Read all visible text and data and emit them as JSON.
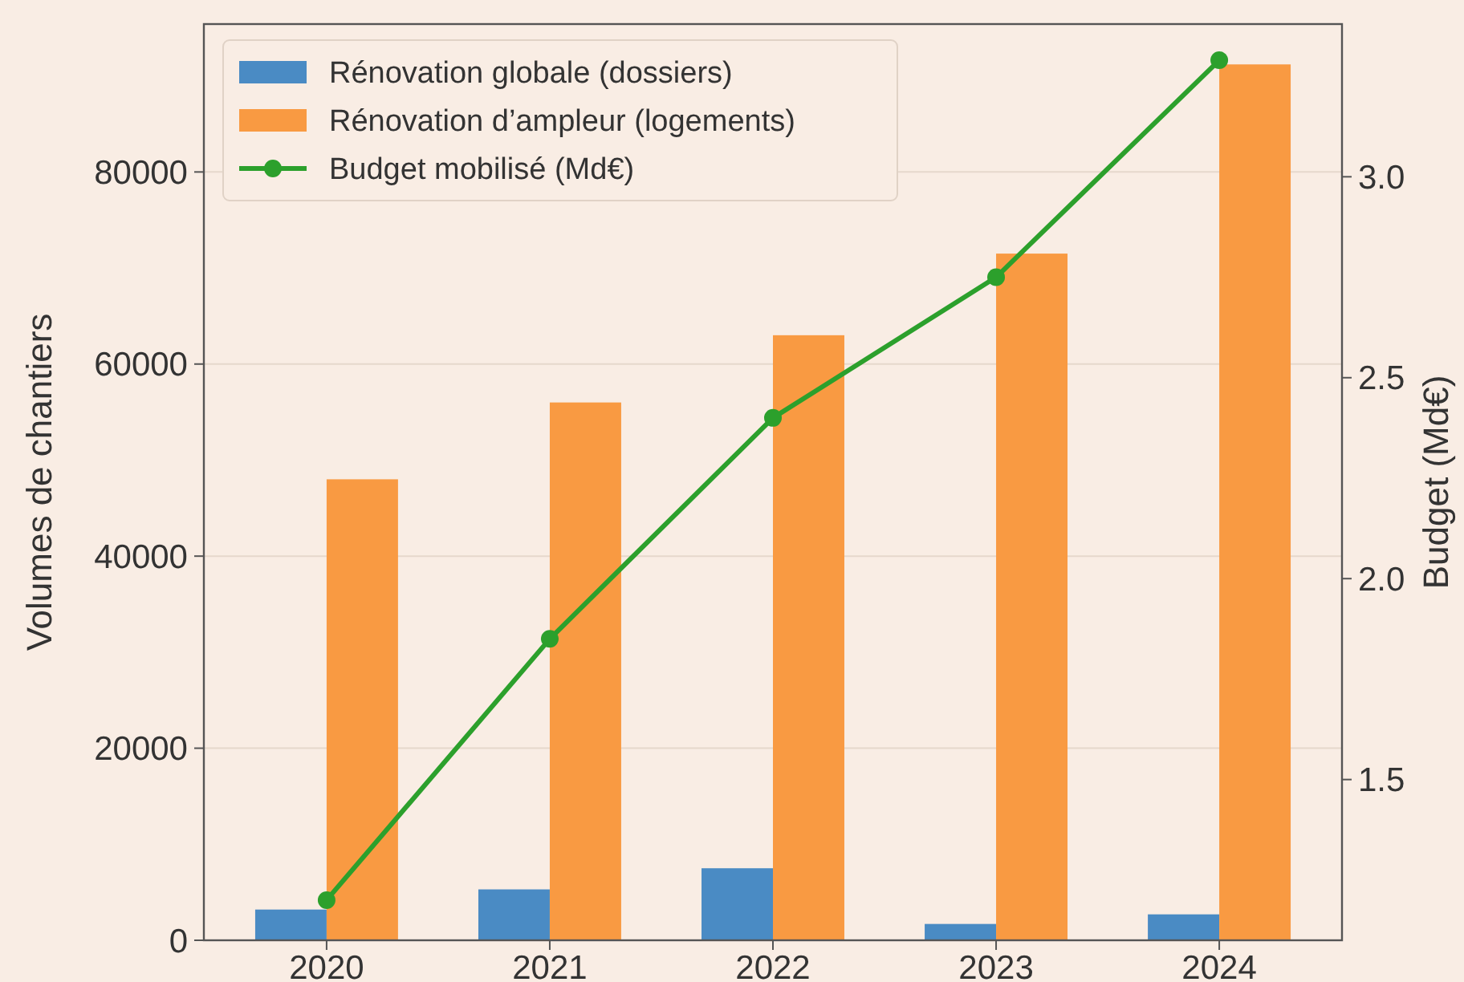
{
  "chart_data": {
    "type": "bar",
    "categories": [
      "2020",
      "2021",
      "2022",
      "2023",
      "2024"
    ],
    "ylabel": "Volumes de chantiers",
    "y2label": "Budget (Md€)",
    "series": [
      {
        "name": "Rénovation globale (dossiers)",
        "color": "#4a8bc4",
        "values": [
          3200,
          5300,
          7500,
          1700,
          2700
        ]
      },
      {
        "name": "Rénovation d’ampleur (logements)",
        "color": "#f99a42",
        "values": [
          48000,
          56000,
          63000,
          71500,
          91200
        ]
      },
      {
        "name": "Budget mobilisé (Md€)",
        "type": "line",
        "axis": "y2",
        "color": "#2ca02c",
        "values": [
          1.2,
          1.85,
          2.4,
          2.75,
          3.29
        ]
      }
    ],
    "ylim": [
      0,
      95400
    ],
    "yticks": [
      0,
      20000,
      40000,
      60000,
      80000
    ],
    "y2lim": [
      1.1,
      3.38
    ],
    "y2ticks": [
      1.5,
      {
        "value": 2,
        "label": "2.0"
      },
      2.5,
      {
        "value": 3,
        "label": "3.0"
      }
    ],
    "grid": "y",
    "legend": "top left",
    "marker": "circle"
  }
}
